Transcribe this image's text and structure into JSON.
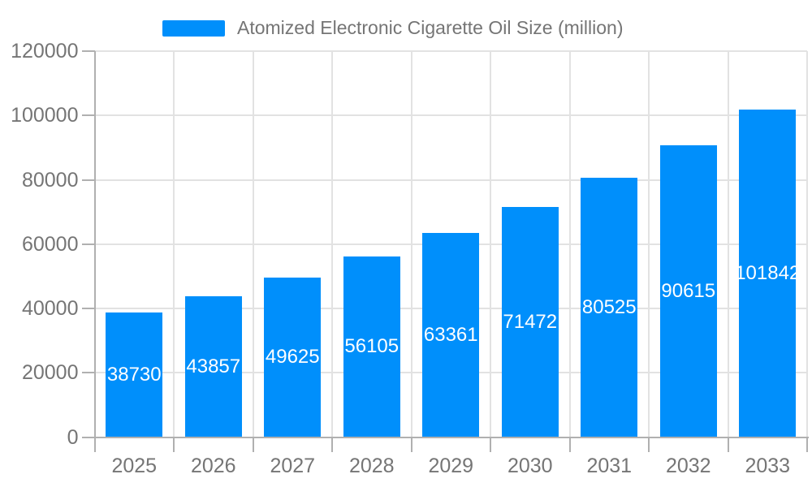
{
  "chart_data": {
    "type": "bar",
    "title": "Atomized Electronic Cigarette Oil Size (million)",
    "series": [
      {
        "name": "Atomized Electronic Cigarette Oil Size (million)",
        "values": [
          38730,
          43857,
          49625,
          56105,
          63361,
          71472,
          80525,
          90615,
          101842
        ]
      }
    ],
    "categories": [
      "2025",
      "2026",
      "2027",
      "2028",
      "2029",
      "2030",
      "2031",
      "2032",
      "2033"
    ],
    "xlabel": "",
    "ylabel": "",
    "ylim": [
      0,
      120000
    ],
    "yticks": [
      0,
      20000,
      40000,
      60000,
      80000,
      100000,
      120000
    ],
    "grid": "both",
    "legend_position": "top",
    "value_labels": "inside-center"
  },
  "colors": {
    "bar": "#008FFB",
    "bar_value_label": "#ffffff",
    "grid": "#e2e2e2",
    "axis_line": "#b0b0b0",
    "tick": "#b0b0b0",
    "axis_text": "#757575",
    "legend_text": "#757575",
    "background": "#ffffff"
  }
}
